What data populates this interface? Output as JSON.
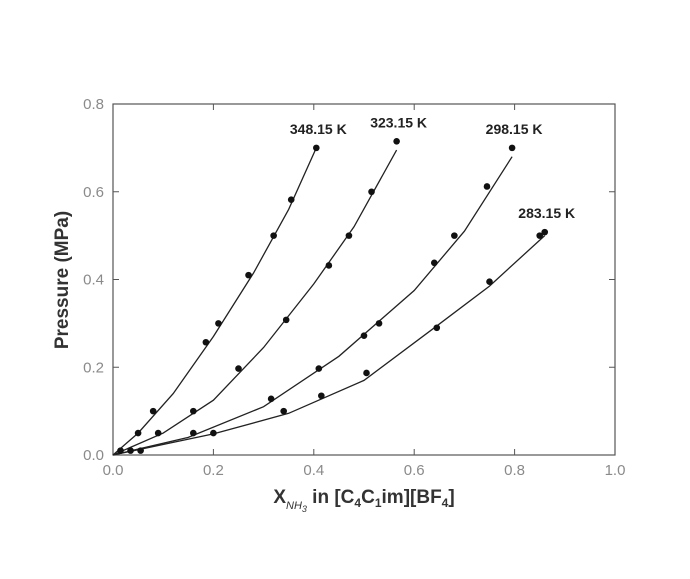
{
  "chart_data": {
    "type": "scatter",
    "xlabel_main": "X",
    "xlabel_sub": "NH",
    "xlabel_sub_sub": "3",
    "xlabel_rest_1": " in [C",
    "xlabel_sub_a": "4",
    "xlabel_rest_2": "C",
    "xlabel_sub_b": "1",
    "xlabel_rest_3": "im][BF",
    "xlabel_sub_c": "4",
    "xlabel_rest_4": "]",
    "ylabel": "Pressure (MPa)",
    "xlim": [
      0.0,
      1.0
    ],
    "ylim": [
      0.0,
      0.8
    ],
    "x_ticks": [
      0.0,
      0.2,
      0.4,
      0.6,
      0.8,
      1.0
    ],
    "x_tick_labels": [
      "0.0",
      "0.2",
      "0.4",
      "0.6",
      "0.8",
      "1.0"
    ],
    "y_ticks": [
      0.0,
      0.2,
      0.4,
      0.6,
      0.8
    ],
    "y_tick_labels": [
      "0.0",
      "0.2",
      "0.4",
      "0.6",
      "0.8"
    ],
    "grid": false,
    "series": [
      {
        "name": "348.15 K",
        "points": [
          [
            0.015,
            0.01
          ],
          [
            0.05,
            0.05
          ],
          [
            0.08,
            0.1
          ],
          [
            0.185,
            0.257
          ],
          [
            0.21,
            0.3
          ],
          [
            0.27,
            0.41
          ],
          [
            0.32,
            0.5
          ],
          [
            0.355,
            0.582
          ],
          [
            0.405,
            0.7
          ]
        ],
        "fit": [
          [
            0.0,
            0.0
          ],
          [
            0.05,
            0.05
          ],
          [
            0.12,
            0.14
          ],
          [
            0.2,
            0.27
          ],
          [
            0.28,
            0.415
          ],
          [
            0.35,
            0.56
          ],
          [
            0.405,
            0.7
          ]
        ]
      },
      {
        "name": "323.15 K",
        "points": [
          [
            0.035,
            0.01
          ],
          [
            0.09,
            0.05
          ],
          [
            0.16,
            0.1
          ],
          [
            0.25,
            0.197
          ],
          [
            0.345,
            0.308
          ],
          [
            0.43,
            0.432
          ],
          [
            0.47,
            0.5
          ],
          [
            0.515,
            0.6
          ],
          [
            0.565,
            0.715
          ]
        ],
        "fit": [
          [
            0.0,
            0.0
          ],
          [
            0.1,
            0.05
          ],
          [
            0.2,
            0.125
          ],
          [
            0.3,
            0.245
          ],
          [
            0.4,
            0.39
          ],
          [
            0.48,
            0.52
          ],
          [
            0.565,
            0.695
          ]
        ]
      },
      {
        "name": "298.15 K",
        "points": [
          [
            0.055,
            0.01
          ],
          [
            0.16,
            0.05
          ],
          [
            0.315,
            0.128
          ],
          [
            0.41,
            0.197
          ],
          [
            0.5,
            0.272
          ],
          [
            0.53,
            0.3
          ],
          [
            0.64,
            0.438
          ],
          [
            0.68,
            0.5
          ],
          [
            0.745,
            0.612
          ],
          [
            0.795,
            0.7
          ]
        ],
        "fit": [
          [
            0.0,
            0.0
          ],
          [
            0.15,
            0.04
          ],
          [
            0.3,
            0.11
          ],
          [
            0.45,
            0.225
          ],
          [
            0.6,
            0.375
          ],
          [
            0.7,
            0.51
          ],
          [
            0.795,
            0.68
          ]
        ]
      },
      {
        "name": "283.15 K",
        "points": [
          [
            0.2,
            0.05
          ],
          [
            0.34,
            0.1
          ],
          [
            0.415,
            0.135
          ],
          [
            0.505,
            0.187
          ],
          [
            0.645,
            0.29
          ],
          [
            0.75,
            0.395
          ],
          [
            0.85,
            0.5
          ],
          [
            0.86,
            0.508
          ]
        ],
        "fit": [
          [
            0.0,
            0.0
          ],
          [
            0.2,
            0.048
          ],
          [
            0.35,
            0.095
          ],
          [
            0.5,
            0.17
          ],
          [
            0.64,
            0.29
          ],
          [
            0.75,
            0.385
          ],
          [
            0.86,
            0.5
          ]
        ]
      }
    ]
  }
}
